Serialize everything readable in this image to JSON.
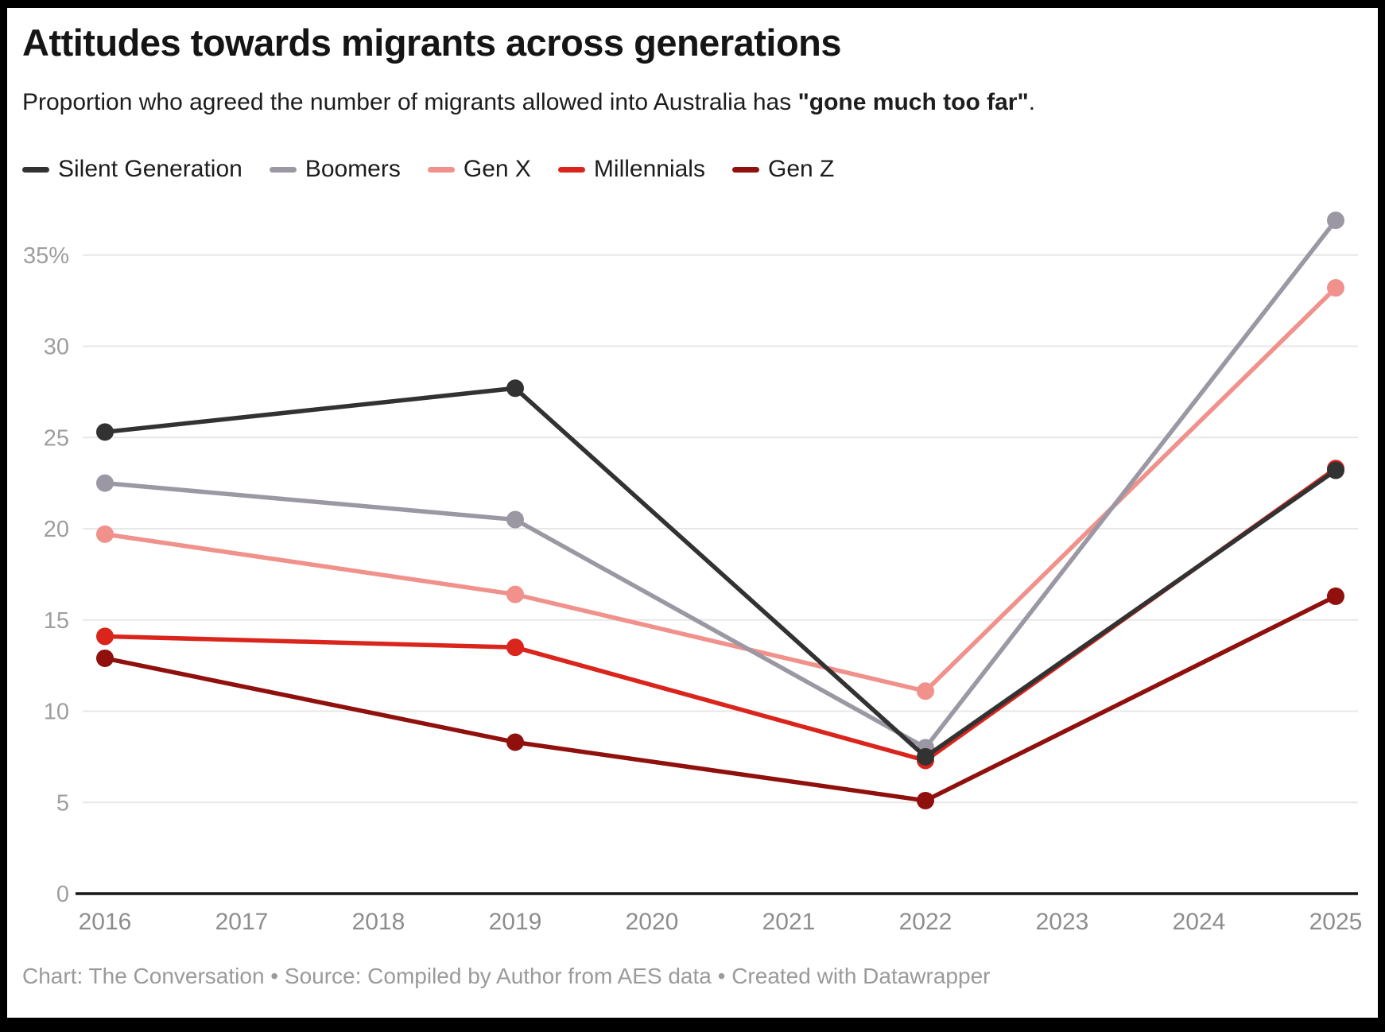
{
  "header": {
    "title": "Attitudes towards migrants across generations",
    "subtitle_pre": "Proportion who agreed the number of migrants allowed into Australia has ",
    "subtitle_bold": "\"gone much too far\"",
    "subtitle_post": "."
  },
  "footer": {
    "text": "Chart: The Conversation • Source: Compiled by Author from AES data • Created with Datawrapper"
  },
  "chart_data": {
    "type": "line",
    "title": "Attitudes towards migrants across generations",
    "subtitle": "Proportion who agreed the number of migrants allowed into Australia has \"gone much too far\".",
    "x": [
      2016,
      2019,
      2022,
      2025
    ],
    "x_axis_ticks": [
      2016,
      2017,
      2018,
      2019,
      2020,
      2021,
      2022,
      2023,
      2024,
      2025
    ],
    "series": [
      {
        "name": "Silent Generation",
        "color": "#323232",
        "values": [
          25.3,
          27.7,
          7.5,
          23.2
        ]
      },
      {
        "name": "Boomers",
        "color": "#9b98a4",
        "values": [
          22.5,
          20.5,
          8.0,
          36.9
        ]
      },
      {
        "name": "Gen X",
        "color": "#f0918b",
        "values": [
          19.7,
          16.4,
          11.1,
          33.2
        ]
      },
      {
        "name": "Millennials",
        "color": "#da251d",
        "values": [
          14.1,
          13.5,
          7.3,
          23.3
        ]
      },
      {
        "name": "Gen Z",
        "color": "#8f100d",
        "values": [
          12.9,
          8.3,
          5.1,
          16.3
        ]
      }
    ],
    "ylim": [
      0,
      37.5
    ],
    "yticks": [
      0,
      5,
      10,
      15,
      20,
      25,
      30,
      35
    ],
    "ytick_top_suffix": "%",
    "xlabel": "",
    "ylabel": "",
    "grid": true,
    "legend_position": "top",
    "colors": {
      "grid_line": "#e7e7e7",
      "axis_line": "#161616",
      "y_tick_text": "#9e9e9e",
      "x_tick_text": "#8d8d8d"
    }
  }
}
